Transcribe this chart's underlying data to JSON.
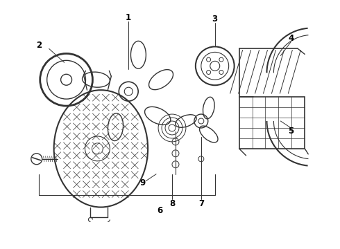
{
  "background_color": "#ffffff",
  "line_color": "#333333",
  "label_color": "#000000",
  "fig_width": 4.9,
  "fig_height": 3.6,
  "dpi": 100
}
